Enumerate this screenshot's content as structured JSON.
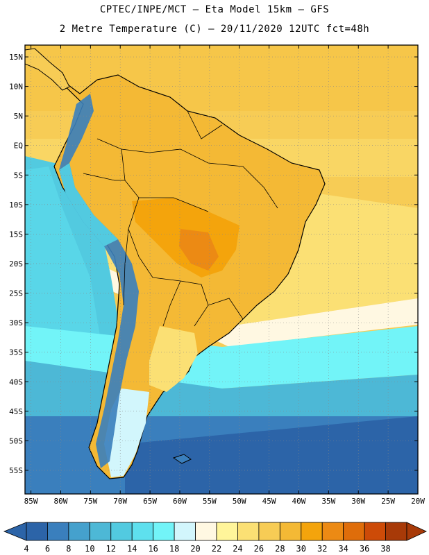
{
  "header": {
    "line1": "CPTEC/INPE/MCT –  Eta Model 15km – GFS",
    "line2": "2 Metre Temperature (C) – 20/11/2020 12UTC fct=48h"
  },
  "map": {
    "lon_range": [
      -86,
      -20
    ],
    "lat_range": [
      -59,
      17
    ],
    "lat_ticks": [
      "15N",
      "10N",
      "5N",
      "EQ",
      "5S",
      "10S",
      "15S",
      "20S",
      "25S",
      "30S",
      "35S",
      "40S",
      "45S",
      "50S",
      "55S"
    ],
    "lon_ticks": [
      "85W",
      "80W",
      "75W",
      "70W",
      "65W",
      "60W",
      "55W",
      "50W",
      "45W",
      "40W",
      "35W",
      "30W",
      "25W",
      "20W"
    ],
    "grid": true
  },
  "colorbar": {
    "labels": [
      "4",
      "6",
      "8",
      "10",
      "12",
      "14",
      "16",
      "18",
      "20",
      "22",
      "24",
      "26",
      "28",
      "30",
      "32",
      "34",
      "36",
      "38"
    ],
    "colors": [
      "#2c64a8",
      "#3a7fbd",
      "#45a1cd",
      "#4db8d6",
      "#52cae0",
      "#5ee0ee",
      "#72f4f8",
      "#d2f6fc",
      "#fff8e2",
      "#fff59a",
      "#fbe074",
      "#f7cc55",
      "#f4b935",
      "#f4a40c",
      "#ec8a14",
      "#df6d0a",
      "#cd4b08",
      "#a83a08"
    ],
    "lower_arrow_color": "#2c64a8",
    "upper_arrow_color": "#a83a08"
  }
}
